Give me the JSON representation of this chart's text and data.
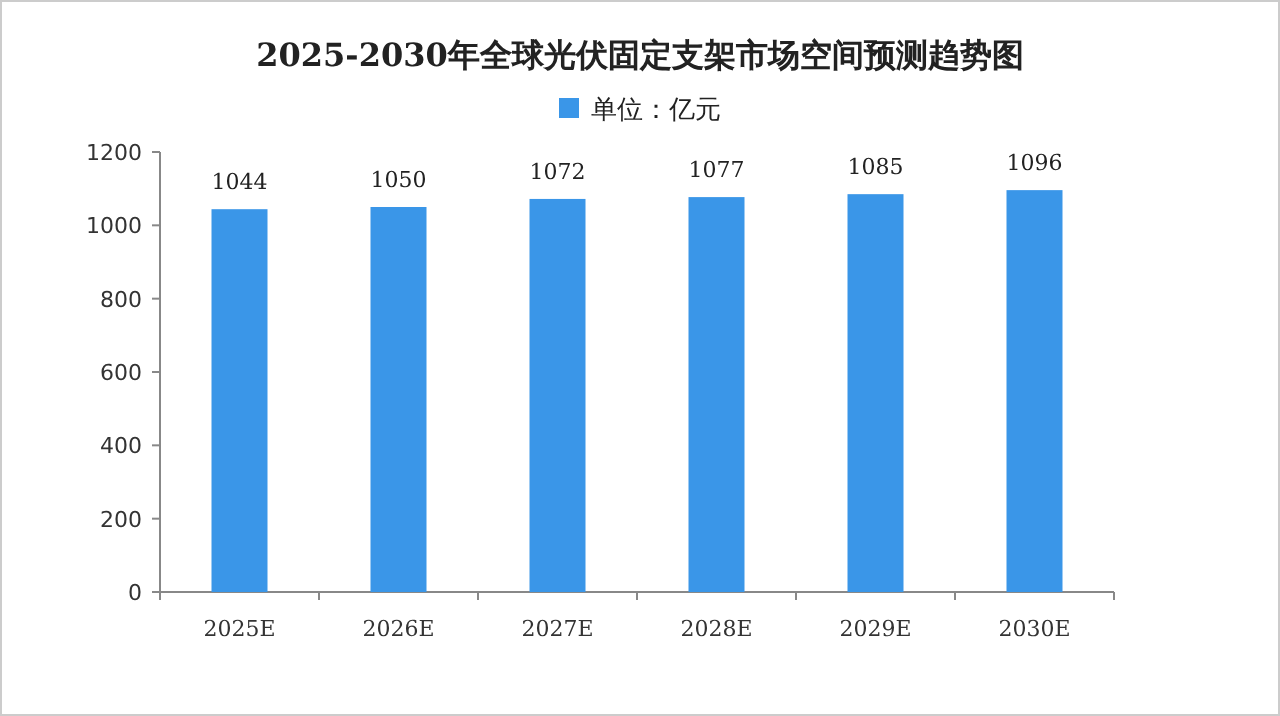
{
  "chart_data": {
    "type": "bar",
    "title": "2025-2030年全球光伏固定支架市场空间预测趋势图",
    "categories": [
      "2025E",
      "2026E",
      "2027E",
      "2028E",
      "2029E",
      "2030E"
    ],
    "series": [
      {
        "name": "单位：亿元",
        "color": "#3a96e8",
        "values": [
          1044,
          1050,
          1072,
          1077,
          1085,
          1096
        ]
      }
    ],
    "ylim": [
      0,
      1200
    ],
    "yticks": [
      0,
      200,
      400,
      600,
      800,
      1000,
      1200
    ],
    "data_labels": true,
    "legend": "top",
    "grid": false
  }
}
